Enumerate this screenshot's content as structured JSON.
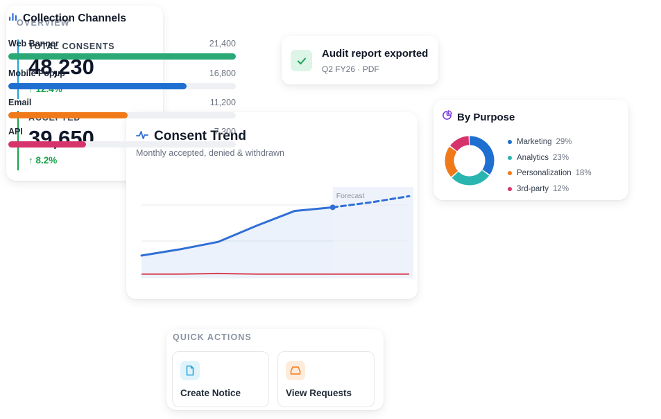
{
  "overview": {
    "title": "OVERVIEW",
    "metrics": [
      {
        "label": "TOTAL CONSENTS",
        "value": "48,230",
        "delta": "↑ 12.4%"
      },
      {
        "label": "ACCEPTED",
        "value": "39,650",
        "delta": "↑ 8.2%"
      }
    ]
  },
  "toast": {
    "icon": "check-icon",
    "title": "Audit report exported",
    "subtitle": "Q2 FY26 · PDF"
  },
  "trend": {
    "icon": "pulse-icon",
    "title": "Consent Trend",
    "subtitle": "Monthly accepted, denied & withdrawn",
    "forecast_label": "Forecast"
  },
  "purpose": {
    "icon": "pie-chart-icon",
    "title": "By Purpose",
    "items": [
      {
        "name": "Marketing",
        "pct": "29%",
        "color": "#1f6fd1"
      },
      {
        "name": "Analytics",
        "pct": "23%",
        "color": "#2bb5b0"
      },
      {
        "name": "Personalization",
        "pct": "18%",
        "color": "#f07a1a"
      },
      {
        "name": "3rd-party",
        "pct": "12%",
        "color": "#d6336c"
      }
    ]
  },
  "channels": {
    "icon": "bar-chart-icon",
    "title": "Collection Channels",
    "max": 21400,
    "items": [
      {
        "name": "Web Banner",
        "value": "21,400",
        "amount": 21400,
        "color": "#2aa876"
      },
      {
        "name": "Mobile Popup",
        "value": "16,800",
        "amount": 16800,
        "color": "#1f6fd1"
      },
      {
        "name": "Email",
        "value": "11,200",
        "amount": 11200,
        "color": "#f07a1a"
      },
      {
        "name": "API",
        "value": "7,300",
        "amount": 7300,
        "color": "#d6336c"
      }
    ]
  },
  "quick_actions": {
    "title": "QUICK ACTIONS",
    "buttons": [
      {
        "label": "Create Notice",
        "icon": "document-icon",
        "icon_color": "#1fa1d8",
        "icon_bg": "#e0f3fb"
      },
      {
        "label": "View Requests",
        "icon": "inbox-icon",
        "icon_color": "#f07a1a",
        "icon_bg": "#fdecdc"
      }
    ]
  },
  "chart_data": {
    "type": "line",
    "title": "Consent Trend",
    "subtitle": "Monthly accepted, denied & withdrawn",
    "x": [
      1,
      2,
      3,
      4,
      5,
      6,
      7,
      8
    ],
    "series": [
      {
        "name": "",
        "values": [
          22,
          32,
          44,
          70,
          94,
          100,
          108,
          118
        ],
        "forecast_from_index": 5,
        "color": "#2f6fd6"
      },
      {
        "name": "",
        "values": [
          -8,
          -8,
          -7,
          -8,
          -8,
          -8,
          -8,
          -8
        ],
        "color": "#d9435a"
      }
    ],
    "ylim": [
      -15,
      125
    ],
    "grid": true,
    "annotations": [
      "Forecast"
    ]
  }
}
